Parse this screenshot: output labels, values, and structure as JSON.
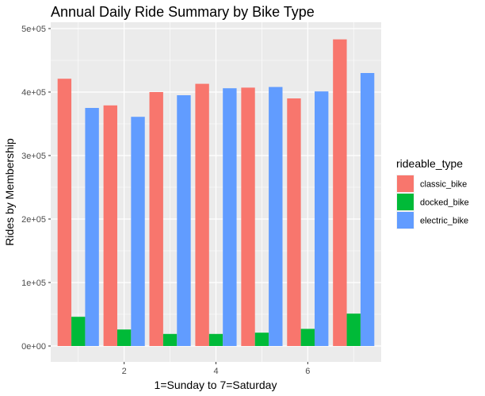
{
  "chart_data": {
    "type": "bar",
    "title": "Annual Daily Ride Summary by Bike Type",
    "xlabel": "1=Sunday to 7=Saturday",
    "ylabel": "Rides by Membership",
    "categories": [
      1,
      2,
      3,
      4,
      5,
      6,
      7
    ],
    "x_ticks": [
      2,
      4,
      6
    ],
    "x_tick_labels": [
      "2",
      "4",
      "6"
    ],
    "y_ticks": [
      0,
      100000,
      200000,
      300000,
      400000,
      500000
    ],
    "y_tick_labels": [
      "0e+00",
      "1e+05",
      "2e+05",
      "3e+05",
      "4e+05",
      "5e+05"
    ],
    "xlim": [
      0.4,
      7.6
    ],
    "ylim": [
      -25000,
      510000
    ],
    "grid": true,
    "legend": {
      "title": "rideable_type",
      "position": "right"
    },
    "series": [
      {
        "name": "classic_bike",
        "color": "#F8766D",
        "values": [
          421000,
          379000,
          400000,
          413000,
          407000,
          390000,
          483000
        ]
      },
      {
        "name": "docked_bike",
        "color": "#00BA38",
        "values": [
          46000,
          26000,
          19000,
          19000,
          21000,
          27000,
          51000
        ]
      },
      {
        "name": "electric_bike",
        "color": "#619CFF",
        "values": [
          375000,
          361000,
          395000,
          406000,
          408000,
          401000,
          430000
        ]
      }
    ]
  }
}
